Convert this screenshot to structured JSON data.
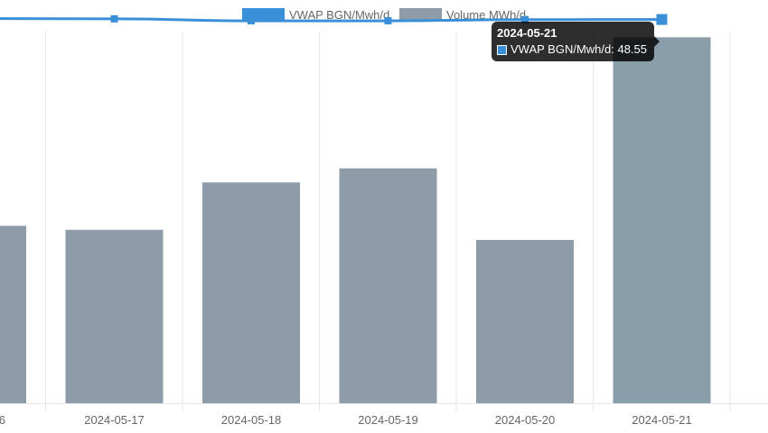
{
  "chart_data": {
    "type": "bar",
    "categories": [
      "6",
      "2024-05-17",
      "2024-05-18",
      "2024-05-19",
      "2024-05-20",
      "2024-05-21"
    ],
    "series": [
      {
        "name": "Volume MWh/d",
        "type": "bar",
        "color": "#8d9ca8",
        "values": [
          1760,
          1720,
          2190,
          2330,
          1620,
          3630
        ]
      },
      {
        "name": "VWAP BGN/Mwh/d",
        "type": "line",
        "color": "#3a8fd9",
        "values": [
          48.62,
          48.6,
          48.45,
          48.45,
          48.54,
          48.55
        ]
      }
    ],
    "volume_axis_range": [
      0,
      4000
    ],
    "vwap_axis_range": [
      20,
      50
    ],
    "grid": "vertical",
    "legend": "top-center",
    "tooltip": {
      "title": "2024-05-21",
      "label": "VWAP BGN/Mwh/d: 48.55"
    }
  }
}
